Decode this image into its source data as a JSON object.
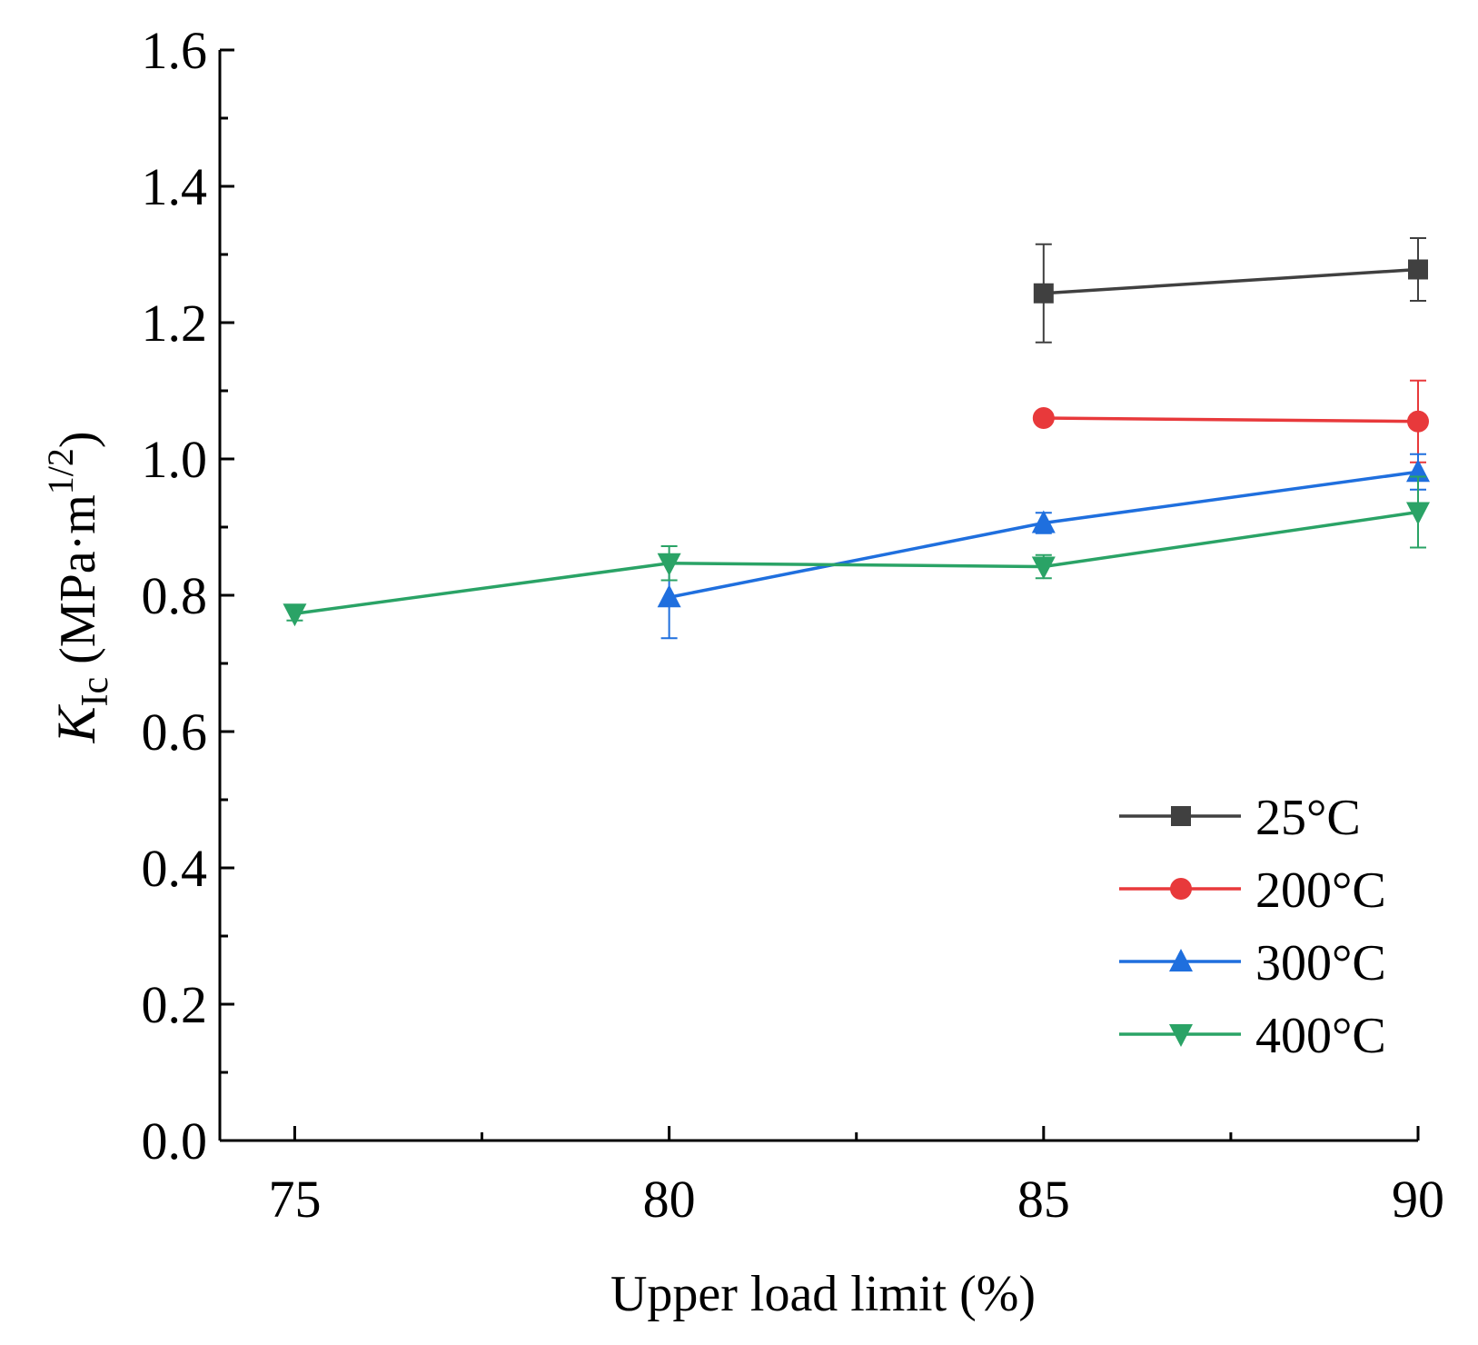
{
  "chart_data": {
    "type": "line",
    "title": "",
    "xlabel": "Upper load limit (%)",
    "ylabel": {
      "symbol": "K",
      "subscript": "Ic",
      "unit_open": "(MPa·m",
      "unit_exponent": "1/2",
      "unit_close": ")"
    },
    "xlim": [
      74,
      90
    ],
    "ylim": [
      0.0,
      1.6
    ],
    "x_ticks": [
      75,
      80,
      85,
      90
    ],
    "x_tick_labels": [
      "75",
      "80",
      "85",
      "90"
    ],
    "y_ticks": [
      0.0,
      0.2,
      0.4,
      0.6,
      0.8,
      1.0,
      1.2,
      1.4,
      1.6
    ],
    "y_tick_labels": [
      "0.0",
      "0.2",
      "0.4",
      "0.6",
      "0.8",
      "1.0",
      "1.2",
      "1.4",
      "1.6"
    ],
    "grid": false,
    "legend_position": "bottom-right",
    "series": [
      {
        "name": "25°C",
        "color": "#404040",
        "marker": "square",
        "x": [
          85,
          90
        ],
        "y": [
          1.243,
          1.278
        ],
        "err": [
          0.072,
          0.046
        ]
      },
      {
        "name": "200°C",
        "color": "#e8393b",
        "marker": "circle",
        "x": [
          85,
          90
        ],
        "y": [
          1.06,
          1.055
        ],
        "err": [
          0.008,
          0.06
        ]
      },
      {
        "name": "300°C",
        "color": "#1f6fde",
        "marker": "triangle-up",
        "x": [
          80,
          85,
          90
        ],
        "y": [
          0.797,
          0.906,
          0.981
        ],
        "err": [
          0.06,
          0.015,
          0.026
        ]
      },
      {
        "name": "400°C",
        "color": "#2aa366",
        "marker": "triangle-down",
        "x": [
          75,
          80,
          85,
          90
        ],
        "y": [
          0.773,
          0.847,
          0.842,
          0.922
        ],
        "err": [
          0.01,
          0.025,
          0.017,
          0.052
        ]
      }
    ]
  }
}
